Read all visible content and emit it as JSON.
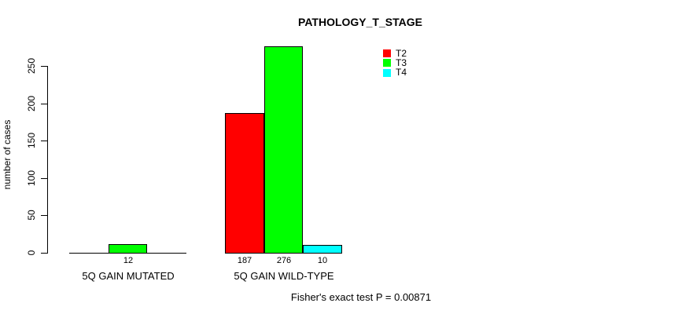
{
  "chart_data": {
    "type": "bar",
    "title": "PATHOLOGY_T_STAGE",
    "ylabel": "number of cases",
    "xlabel": "",
    "yticks": [
      0,
      50,
      100,
      150,
      200,
      250
    ],
    "ylim": [
      0,
      280
    ],
    "grid": false,
    "legend_position": "top-right",
    "categories": [
      "5Q GAIN MUTATED",
      "5Q GAIN WILD-TYPE"
    ],
    "series": [
      {
        "name": "T2",
        "color": "#ff0000",
        "values": [
          0,
          187
        ]
      },
      {
        "name": "T3",
        "color": "#00ff00",
        "values": [
          12,
          276
        ]
      },
      {
        "name": "T4",
        "color": "#00ffff",
        "values": [
          0,
          10
        ]
      }
    ],
    "visible_bar_value_labels": [
      "12",
      "187",
      "276",
      "10"
    ],
    "zero_bars_unlabeled": true,
    "annotation": "Fisher's exact test P = 0.00871",
    "axis_color": "#000000",
    "background_color": "#ffffff"
  }
}
